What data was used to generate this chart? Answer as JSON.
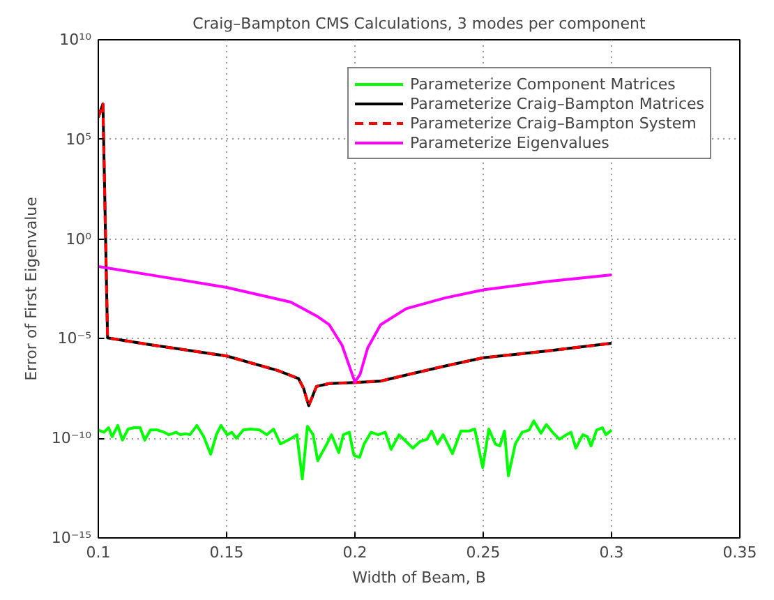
{
  "chart_data": {
    "type": "line",
    "title": "Craig–Bampton CMS Calculations, 3 modes per component",
    "xlabel": "Width of Beam, B",
    "ylabel": "Error of First Eigenvalue",
    "log": "y",
    "grid": true,
    "legend": "top right",
    "xlim": [
      0.1,
      0.35
    ],
    "xticks": [
      0.1,
      0.15,
      0.2,
      0.25,
      0.3,
      0.35
    ],
    "ylim": [
      1e-15,
      10000000000.0
    ],
    "yticks": [
      {
        "value": 1e-15,
        "label": "10⁻¹⁵"
      },
      {
        "value": 1e-10,
        "label": "10⁻¹⁰"
      },
      {
        "value": 1e-05,
        "label": "10⁻⁵"
      },
      {
        "value": 1,
        "label": "10⁰"
      },
      {
        "value": 100000,
        "label": "10⁵"
      },
      {
        "value": 10000000000,
        "label": "10¹⁰"
      }
    ],
    "series": [
      {
        "name": "Parameterize Component Matrices",
        "color": "#00ff00",
        "line_style": "solid",
        "x": [
          0.1,
          0.1022,
          0.104,
          0.1054,
          0.1076,
          0.1094,
          0.1116,
          0.1139,
          0.1163,
          0.1181,
          0.1203,
          0.123,
          0.1257,
          0.1275,
          0.1303,
          0.1321,
          0.1339,
          0.1357,
          0.1384,
          0.1411,
          0.1438,
          0.146,
          0.1478,
          0.1502,
          0.152,
          0.1538,
          0.1565,
          0.1592,
          0.1629,
          0.1656,
          0.1683,
          0.171,
          0.1746,
          0.1774,
          0.1795,
          0.1815,
          0.1837,
          0.1855,
          0.1882,
          0.1909,
          0.1937,
          0.1955,
          0.1978,
          0.1996,
          0.2018,
          0.2036,
          0.2063,
          0.2091,
          0.2118,
          0.2141,
          0.2172,
          0.2199,
          0.2226,
          0.2254,
          0.2281,
          0.2299,
          0.2322,
          0.2344,
          0.238,
          0.2413,
          0.2444,
          0.2467,
          0.2498,
          0.2522,
          0.2547,
          0.2565,
          0.2583,
          0.2598,
          0.2625,
          0.2652,
          0.2679,
          0.2697,
          0.2725,
          0.2746,
          0.277,
          0.2797,
          0.2824,
          0.2842,
          0.2861,
          0.2888,
          0.2906,
          0.292,
          0.2942,
          0.2964,
          0.2978,
          0.3
        ],
        "values": [
          2.6e-10,
          2e-10,
          3.4e-10,
          1.2e-10,
          4.4e-10,
          8.1e-11,
          2.9e-10,
          3.4e-10,
          3.4e-10,
          8.1e-11,
          2.6e-10,
          2.6e-10,
          2e-10,
          1.5e-10,
          2e-10,
          1.5e-10,
          1.7e-10,
          1.5e-10,
          4.4e-10,
          1.2e-10,
          1.6e-11,
          1.5e-10,
          4.4e-10,
          1.5e-10,
          2e-10,
          1e-10,
          2.6e-10,
          2.9e-10,
          2.6e-10,
          1.5e-10,
          2.9e-10,
          5.2e-11,
          8.9e-11,
          1.5e-10,
          9.1e-13,
          4e-10,
          1.5e-10,
          7.6e-12,
          3.2e-11,
          1.5e-10,
          1.9e-11,
          1.5e-10,
          2e-10,
          1.4e-11,
          1.1e-11,
          5.2e-11,
          2e-10,
          1.5e-10,
          2e-10,
          2.8e-11,
          1.5e-10,
          6.9e-11,
          3.2e-11,
          6.9e-11,
          8.9e-11,
          2.3e-10,
          5.2e-11,
          1.5e-10,
          1.7e-11,
          2.3e-10,
          2.3e-10,
          2.9e-10,
          3.4e-12,
          2.9e-10,
          5.2e-11,
          4.1e-11,
          2.3e-10,
          1.3e-12,
          5.2e-11,
          2e-10,
          2.6e-10,
          7.4e-10,
          1.8e-10,
          4.9e-10,
          2e-10,
          8.9e-11,
          1.5e-10,
          2e-10,
          3.2e-11,
          1.5e-10,
          1.2e-10,
          4.1e-11,
          2.6e-10,
          3.4e-10,
          1.5e-10,
          2.6e-10
        ]
      },
      {
        "name": "Parameterize Craig–Bampton Matrices",
        "color": "#000000",
        "line_style": "solid",
        "x": [
          0.1,
          0.1018,
          0.1036,
          0.12,
          0.15,
          0.17,
          0.178,
          0.18,
          0.182,
          0.185,
          0.19,
          0.2,
          0.21,
          0.22,
          0.235,
          0.25,
          0.275,
          0.3
        ],
        "values": [
          1300000.0,
          6000000.0,
          1.1e-05,
          5e-06,
          1.35e-06,
          2.5e-07,
          1e-07,
          3.2e-08,
          4.3e-09,
          4e-08,
          5.6e-08,
          6.3e-08,
          7.4e-08,
          1.5e-07,
          4.2e-07,
          1.1e-06,
          2.4e-06,
          5.9e-06
        ]
      },
      {
        "name": "Parameterize Craig–Bampton System",
        "color": "#ff0000",
        "line_style": "dashed",
        "x": [
          0.1,
          0.1018,
          0.1036,
          0.12,
          0.15,
          0.17,
          0.178,
          0.18,
          0.182,
          0.185,
          0.19,
          0.2,
          0.21,
          0.22,
          0.235,
          0.25,
          0.275,
          0.3
        ],
        "values": [
          1300000.0,
          6000000.0,
          1.1e-05,
          5e-06,
          1.35e-06,
          2.5e-07,
          1e-07,
          3.2e-08,
          4.3e-09,
          4e-08,
          5.6e-08,
          6.3e-08,
          7.4e-08,
          1.5e-07,
          4.2e-07,
          1.1e-06,
          2.4e-06,
          5.9e-06
        ]
      },
      {
        "name": "Parameterize Eigenvalues",
        "color": "#ff00ff",
        "line_style": "solid",
        "x": [
          0.1,
          0.125,
          0.15,
          0.175,
          0.185,
          0.19,
          0.195,
          0.2,
          0.202,
          0.205,
          0.21,
          0.22,
          0.235,
          0.25,
          0.275,
          0.3
        ],
        "values": [
          0.042,
          0.0126,
          0.0037,
          0.00068,
          0.00014,
          5e-05,
          4.6e-06,
          6.6e-08,
          1.6e-07,
          3.5e-06,
          5e-05,
          0.00032,
          0.0011,
          0.0028,
          0.0074,
          0.016
        ]
      }
    ]
  }
}
